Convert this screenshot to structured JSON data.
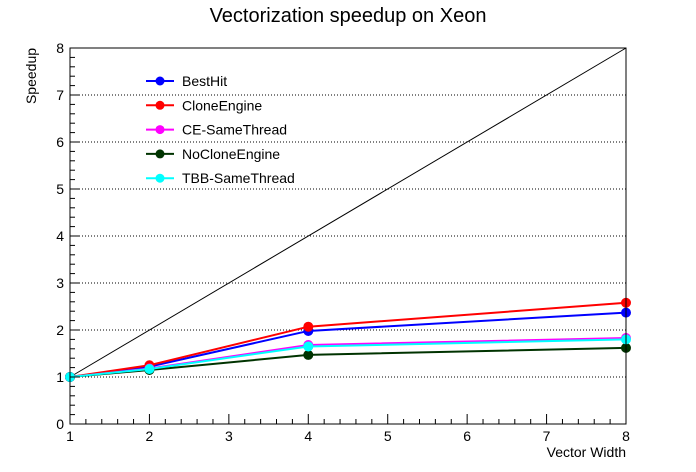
{
  "chart_data": {
    "type": "line",
    "title": "Vectorization speedup on Xeon",
    "xlabel": "Vector Width",
    "ylabel": "Speedup",
    "xlim": [
      1,
      8
    ],
    "ylim": [
      0,
      8
    ],
    "x_ticks": [
      1,
      2,
      3,
      4,
      5,
      6,
      7,
      8
    ],
    "y_ticks": [
      0,
      1,
      2,
      3,
      4,
      5,
      6,
      7,
      8
    ],
    "grid": "horizontal dotted",
    "legend_position": "top-left",
    "x": [
      1,
      2,
      4,
      8
    ],
    "reference_line": {
      "x": [
        1,
        8
      ],
      "y": [
        1,
        8
      ],
      "color": "#000000"
    },
    "series": [
      {
        "name": "BestHit",
        "color": "#0000ff",
        "values": [
          1.0,
          1.22,
          1.98,
          2.37
        ]
      },
      {
        "name": "CloneEngine",
        "color": "#ff0000",
        "values": [
          1.0,
          1.25,
          2.07,
          2.58
        ]
      },
      {
        "name": "CE-SameThread",
        "color": "#ff00ff",
        "values": [
          1.0,
          1.18,
          1.68,
          1.83
        ]
      },
      {
        "name": "NoCloneEngine",
        "color": "#003300",
        "values": [
          1.0,
          1.15,
          1.47,
          1.62
        ]
      },
      {
        "name": "TBB-SameThread",
        "color": "#00ffff",
        "values": [
          1.0,
          1.17,
          1.65,
          1.8
        ]
      }
    ]
  }
}
